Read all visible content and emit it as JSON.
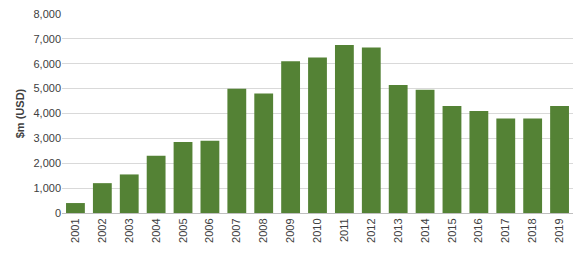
{
  "chart_data": {
    "type": "bar",
    "y_label": "$m (USD)",
    "categories": [
      "2001",
      "2002",
      "2003",
      "2004",
      "2005",
      "2006",
      "2007",
      "2008",
      "2009",
      "2010",
      "2011",
      "2012",
      "2013",
      "2014",
      "2015",
      "2016",
      "2017",
      "2018",
      "2019"
    ],
    "values": [
      400,
      1200,
      1550,
      2300,
      2850,
      2900,
      5000,
      4800,
      6100,
      6250,
      6750,
      6650,
      5150,
      4950,
      4300,
      4100,
      3800,
      3800,
      4300
    ],
    "color": "#548235",
    "ylim": [
      0,
      8000
    ],
    "yticks": [
      0,
      {
        "value": 1000,
        "label": "1,000"
      },
      {
        "value": 2000,
        "label": "2,000"
      },
      {
        "value": 3000,
        "label": "3,000"
      },
      {
        "value": 4000,
        "label": "4,000"
      },
      {
        "value": 5000,
        "label": "5,000"
      },
      {
        "value": 6000,
        "label": "6,000"
      },
      {
        "value": 7000,
        "label": "7,000"
      },
      {
        "value": 8000,
        "label": "8,000"
      }
    ],
    "grid": true
  }
}
